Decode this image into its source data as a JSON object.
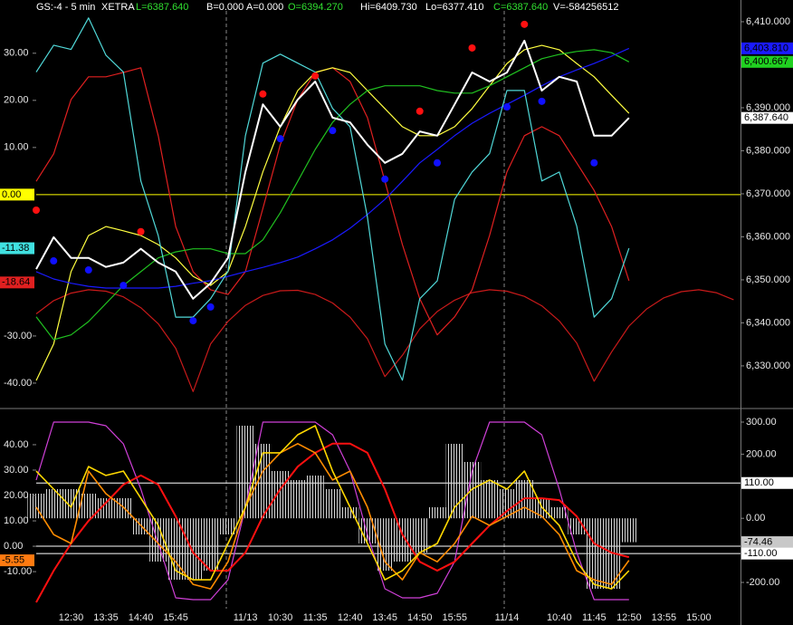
{
  "chart_data": [
    {
      "type": "line",
      "header": [
        {
          "text": "GS:-4 - 5 min",
          "color": "#ffffff"
        },
        {
          "text": "XETRA",
          "color": "#ffffff"
        },
        {
          "text": "L=6387.640",
          "color": "#30e030"
        },
        {
          "text": "B=0.000",
          "color": "#ffffff"
        },
        {
          "text": "A=0.000",
          "color": "#ffffff"
        },
        {
          "text": "O=6394.270",
          "color": "#30e030"
        },
        {
          "text": "Hi=6409.730",
          "color": "#ffffff"
        },
        {
          "text": "Lo=6377.410",
          "color": "#ffffff"
        },
        {
          "text": "C=6387.640",
          "color": "#30e030"
        },
        {
          "text": "V=-584256512",
          "color": "#ffffff"
        }
      ],
      "ylim": [
        -45.2,
        41.3
      ],
      "yticks": [
        {
          "value": 30,
          "label": "30.00"
        },
        {
          "value": 20,
          "label": "20.00"
        },
        {
          "value": 10,
          "label": "10.00"
        },
        {
          "value": -30,
          "label": "-30.00"
        },
        {
          "value": -40,
          "label": "-40.00"
        }
      ],
      "y2lim": [
        6320.3,
        6415.05
      ],
      "y2ticks": [
        {
          "value": 6410,
          "label": "6,410.000"
        },
        {
          "value": 6390,
          "label": "6,390.000"
        },
        {
          "value": 6380,
          "label": "6,380.000"
        },
        {
          "value": 6370,
          "label": "6,370.000"
        },
        {
          "value": 6360,
          "label": "6,360.000"
        },
        {
          "value": 6350,
          "label": "6,350.000"
        },
        {
          "value": 6340,
          "label": "6,340.000"
        },
        {
          "value": 6330,
          "label": "6,330.000"
        }
      ],
      "series": [
        {
          "style": "line",
          "axis": "y",
          "color": "#c81a1a",
          "values": [
            -25.3,
            -22.5,
            -20.9,
            -20.2,
            -20.5,
            -21.7,
            -24.0,
            -27.4,
            -32.6,
            -41.8,
            -31.7,
            -26.9,
            -23.5,
            -21.4,
            -20.4,
            -20.3,
            -21.2,
            -23.0,
            -26.0,
            -30.6,
            -38.6,
            -34.1,
            -28.5,
            -24.8,
            -22.4,
            -20.8,
            -20.2,
            -20.5,
            -21.6,
            -23.6,
            -26.8,
            -31.5,
            -39.6,
            -33.4,
            -27.9,
            -24.3,
            -21.9,
            -20.6,
            -20.2,
            -20.8,
            -22.3
          ]
        },
        {
          "style": "line",
          "axis": "y2",
          "color": "#e02020",
          "values": [
            6372.9,
            6379.3,
            6391.9,
            6397.2,
            6397.2,
            6398.2,
            6399.3,
            6383.5,
            6362.4,
            6351.9,
            6347.7,
            6346.6,
            6351.9,
            6366.6,
            6381.4,
            6391.9,
            6398.2,
            6399.3,
            6396.1,
            6387.7,
            6372.9,
            6358.2,
            6345.6,
            6337.2,
            6341.4,
            6347.7,
            6360.3,
            6375.1,
            6383.5,
            6385.6,
            6383.5,
            6377.2,
            6370.8,
            6362.4,
            6349.8,
            null,
            null,
            null,
            null,
            null,
            null
          ]
        },
        {
          "style": "line",
          "axis": "y2",
          "color": "#ffff40",
          "values": [
            6326.6,
            6335.1,
            6351.9,
            6360.3,
            6362.4,
            6361.4,
            6360.3,
            6358.2,
            6355.1,
            6350.8,
            6348.7,
            6351.9,
            6362.4,
            6375.1,
            6385.6,
            6394.0,
            6398.2,
            6399.3,
            6398.2,
            6394.0,
            6389.8,
            6385.6,
            6383.5,
            6383.5,
            6385.6,
            6389.8,
            6395.1,
            6400.3,
            6403.5,
            6404.5,
            6403.5,
            6400.3,
            6397.2,
            6392.9,
            6388.7,
            null,
            null,
            null,
            null,
            null,
            null
          ]
        },
        {
          "style": "line",
          "axis": "y2",
          "color": "#20c020",
          "values": [
            6341.4,
            6336.1,
            6337.2,
            6340.3,
            6344.5,
            6348.7,
            6351.9,
            6355.1,
            6356.5,
            6357.2,
            6357.2,
            6356.1,
            6356.1,
            6359.3,
            6365.6,
            6372.9,
            6380.3,
            6386.6,
            6390.8,
            6394.0,
            6395.1,
            6395.1,
            6395.1,
            6394.0,
            6393.4,
            6393.4,
            6395.1,
            6397.2,
            6399.3,
            6401.4,
            6402.4,
            6403.1,
            6403.5,
            6402.8,
            6400.667,
            null,
            null,
            null,
            null,
            null,
            null
          ]
        },
        {
          "style": "line",
          "axis": "y2",
          "color": "#1a1aff",
          "values": [
            6351.9,
            6350.2,
            6349.2,
            6348.5,
            6348.1,
            6348.1,
            6348.1,
            6348.1,
            6348.5,
            6349.2,
            6349.8,
            6350.8,
            6351.9,
            6352.9,
            6354.0,
            6355.3,
            6357.2,
            6359.3,
            6362.0,
            6365.2,
            6368.7,
            6372.9,
            6377.2,
            6380.3,
            6383.5,
            6386.4,
            6388.7,
            6390.8,
            6392.9,
            6395.1,
            6397.2,
            6398.8,
            6400.3,
            6402.0,
            6403.81,
            null,
            null,
            null,
            null,
            null,
            null
          ]
        },
        {
          "style": "line",
          "axis": "y",
          "color": "#50d8d8",
          "values": [
            26.0,
            31.7,
            30.8,
            37.5,
            29.6,
            26.0,
            2.9,
            -8.7,
            -26.0,
            -26.0,
            -22.1,
            -16.3,
            12.5,
            27.9,
            29.8,
            27.9,
            26.0,
            18.3,
            14.4,
            -4.8,
            -31.7,
            -39.4,
            -22.1,
            -18.3,
            -1.0,
            4.8,
            8.7,
            22.1,
            22.1,
            2.9,
            4.8,
            -6.7,
            -26.0,
            -22.1,
            -11.38,
            null,
            null,
            null,
            null,
            null,
            null
          ]
        },
        {
          "style": "line",
          "axis": "y2",
          "color": "#ffffff",
          "width": 2,
          "values": [
            6352.5,
            6359.9,
            6355.1,
            6355.1,
            6353.0,
            6354.0,
            6357.2,
            6354.0,
            6351.9,
            6345.6,
            6349.2,
            6355.1,
            6375.1,
            6390.8,
            6385.6,
            6391.9,
            6396.1,
            6387.7,
            6386.6,
            6381.4,
            6377.2,
            6379.3,
            6384.5,
            6383.5,
            6390.8,
            6398.2,
            6396.1,
            6398.2,
            6405.6,
            6394.0,
            6397.2,
            6396.1,
            6383.5,
            6383.5,
            6387.64,
            null,
            null,
            null,
            null,
            null,
            null
          ]
        },
        {
          "style": "dots",
          "axis": "y2",
          "color": "#ff1010",
          "values": [
            6366.2,
            null,
            null,
            null,
            null,
            null,
            6361.2,
            null,
            null,
            null,
            null,
            null,
            null,
            6393.2,
            null,
            null,
            6397.4,
            null,
            null,
            null,
            null,
            null,
            6389.2,
            null,
            null,
            6403.9,
            null,
            null,
            6409.4,
            null,
            null,
            null,
            null,
            null,
            null,
            null,
            null,
            null,
            null,
            null,
            null
          ]
        },
        {
          "style": "dots",
          "axis": "y2",
          "color": "#1010ff",
          "values": [
            null,
            6354.4,
            null,
            6352.3,
            null,
            6348.7,
            null,
            null,
            null,
            6340.5,
            6343.7,
            null,
            null,
            null,
            6382.8,
            null,
            null,
            6384.7,
            null,
            null,
            6373.4,
            null,
            null,
            6377.2,
            null,
            null,
            null,
            6390.2,
            null,
            6391.5,
            null,
            null,
            6377.2,
            null,
            null,
            null,
            null,
            null,
            null,
            null,
            null
          ]
        }
      ],
      "markers": [
        {
          "value": 0,
          "label": "0.00",
          "axis": "y",
          "color": "#ffff00",
          "line": true
        },
        {
          "value": -11.38,
          "axis": "y",
          "color": "#40e0e0"
        },
        {
          "value": -18.64,
          "axis": "y",
          "color": "#e02020"
        },
        {
          "value": 6403.81,
          "label": "6,403.810",
          "axis": "y2",
          "color": "#1a1aff"
        },
        {
          "value": 6400.667,
          "label": "6,400.667",
          "axis": "y2",
          "color": "#20d020"
        },
        {
          "value": 6387.64,
          "label": "6,387.640",
          "axis": "y2",
          "color": "#ffffff"
        }
      ]
    },
    {
      "type": "line",
      "categories": [
        null,
        null,
        "12:30",
        null,
        "13:35",
        null,
        "14:40",
        null,
        "15:45",
        null,
        null,
        null,
        "11/13",
        null,
        "10:30",
        null,
        "11:35",
        null,
        "12:40",
        null,
        "13:45",
        null,
        "14:50",
        null,
        "15:55",
        null,
        null,
        "11/14",
        null,
        null,
        "10:40",
        null,
        "11:45",
        null,
        "12:50",
        null,
        "13:55",
        null,
        "15:00",
        null,
        null
      ],
      "ylim": [
        -24.6,
        53.9
      ],
      "yticks": [
        {
          "value": 40,
          "label": "40.00"
        },
        {
          "value": 30,
          "label": "30.00"
        },
        {
          "value": 20,
          "label": "20.00"
        },
        {
          "value": 10,
          "label": "10.00"
        },
        {
          "value": 0,
          "label": "0.00"
        },
        {
          "value": -10,
          "label": "-10.00"
        }
      ],
      "y2lim": [
        -281.9,
        339.5
      ],
      "y2ticks": [
        {
          "value": 300,
          "label": "300.00"
        },
        {
          "value": 200,
          "label": "200.00"
        },
        {
          "value": 0,
          "label": "0.00"
        },
        {
          "value": -200,
          "label": "-200.00"
        }
      ],
      "series": [
        {
          "style": "histogram",
          "axis": "y2",
          "color": "#d8d8d8",
          "values": [
            76.8,
            91.0,
            91.0,
            76.8,
            62.7,
            62.7,
            -50.3,
            -135.0,
            -191.5,
            -191.5,
            -163.3,
            -50.3,
            288.7,
            232.2,
            147.5,
            119.2,
            133.3,
            91.0,
            34.5,
            -78.5,
            -163.3,
            -135.0,
            -106.8,
            34.5,
            232.2,
            175.7,
            119.2,
            91.0,
            119.2,
            62.7,
            34.5,
            -50.3,
            -219.8,
            -219.8,
            -74.46,
            null,
            null,
            null,
            null,
            null,
            null
          ]
        },
        {
          "style": "line",
          "axis": "y2",
          "color": "#d040d8",
          "values": [
            119.2,
            300,
            300,
            300,
            288.7,
            232.2,
            91.0,
            -78.5,
            -248.0,
            -253.7,
            -253.7,
            -191.5,
            34.5,
            300,
            300,
            300,
            300,
            260.5,
            147.5,
            -50.3,
            -219.8,
            -248.0,
            -248.0,
            -233.9,
            -135.0,
            147.5,
            300,
            300,
            300,
            260.5,
            91.0,
            -106.8,
            -253.7,
            -253.7,
            -253.7,
            null,
            null,
            null,
            null,
            null,
            null
          ]
        },
        {
          "style": "line",
          "axis": "y",
          "color": "#ff1010",
          "width": 2,
          "values": [
            -22.1,
            -9.6,
            1.1,
            10.0,
            17.1,
            24.3,
            27.9,
            24.3,
            11.8,
            -2.5,
            -9.6,
            -9.6,
            -2.5,
            11.8,
            22.5,
            31.4,
            36.8,
            40.4,
            40.4,
            36.8,
            22.5,
            4.6,
            -6.1,
            -9.6,
            -6.1,
            1.1,
            8.2,
            13.9,
            18.9,
            18.9,
            18.2,
            11.8,
            1.1,
            -2.5,
            -4.3,
            null,
            null,
            null,
            null,
            null,
            null
          ]
        },
        {
          "style": "line",
          "axis": "y",
          "color": "#ff8c00",
          "width": 1.6,
          "values": [
            15.4,
            4.6,
            1.1,
            29.6,
            20.7,
            15.4,
            8.2,
            1.1,
            -6.1,
            -15.0,
            -16.8,
            -6.1,
            15.4,
            29.6,
            36.8,
            40.4,
            36.8,
            26.1,
            29.6,
            15.4,
            -6.1,
            -13.2,
            -2.5,
            -6.1,
            1.1,
            11.8,
            8.2,
            11.8,
            15.4,
            11.8,
            4.6,
            -9.6,
            -13.2,
            -15.0,
            -5.55,
            null,
            null,
            null,
            null,
            null,
            null
          ]
        },
        {
          "style": "line",
          "axis": "y",
          "color": "#ffd800",
          "width": 1.6,
          "values": [
            29.6,
            22.5,
            15.4,
            31.4,
            27.9,
            29.6,
            18.9,
            8.2,
            -9.6,
            -13.2,
            -13.2,
            1.1,
            15.4,
            36.8,
            36.8,
            43.9,
            47.5,
            29.6,
            15.4,
            1.1,
            -13.2,
            -9.6,
            -2.5,
            1.1,
            15.4,
            22.5,
            26.1,
            22.5,
            29.6,
            15.4,
            8.2,
            -6.1,
            -15.0,
            -16.8,
            -9.6,
            null,
            null,
            null,
            null,
            null,
            null
          ]
        }
      ],
      "hlines": [
        {
          "value": 0,
          "axis": "y",
          "color": "#ffffff"
        }
      ],
      "markers": [
        {
          "value": -5.55,
          "axis": "y",
          "color": "#ff7a10"
        },
        {
          "value": 110,
          "label": "110.00",
          "axis": "y2",
          "color": "#ffffff",
          "line": true
        },
        {
          "value": -74.46,
          "axis": "y2",
          "color": "#c8c8c8"
        },
        {
          "value": -110,
          "label": "-110.00",
          "axis": "y2",
          "color": "#ffffff",
          "line": true
        }
      ]
    }
  ]
}
